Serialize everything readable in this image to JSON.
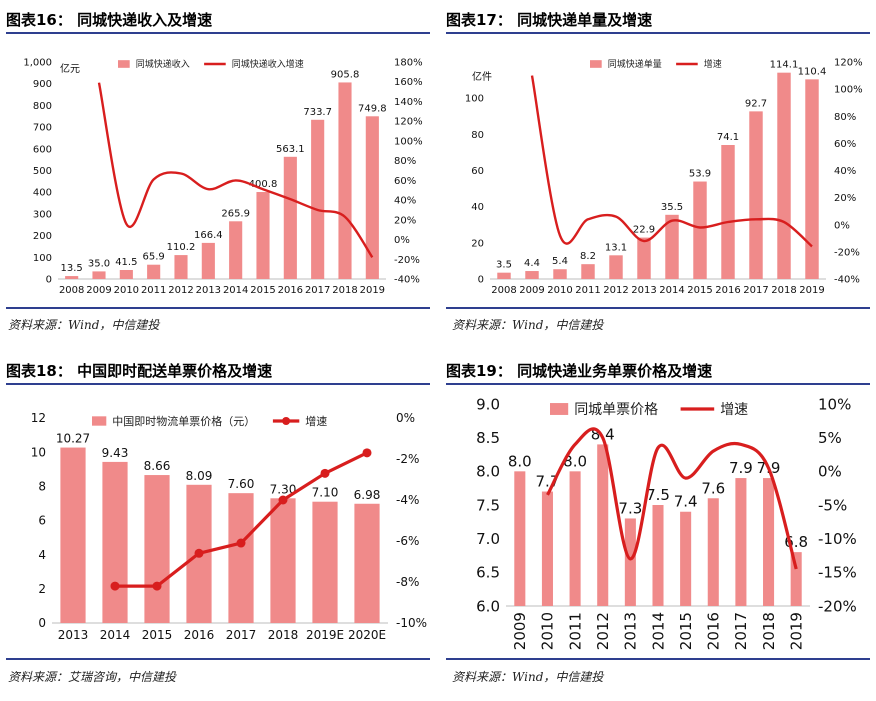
{
  "colors": {
    "bar": "#f08a8a",
    "line": "#d81e1e",
    "rule": "#2e3f8f"
  },
  "panels": [
    {
      "title": "图表16：  同城快递收入及增速",
      "source": "资料来源：Wind，中信建投"
    },
    {
      "title": "图表17：  同城快递单量及增速",
      "source": "资料来源：Wind，中信建投"
    },
    {
      "title": "图表18：  中国即时配送单票价格及增速",
      "source": "资料来源：艾瑞咨询，中信建投"
    },
    {
      "title": "图表19：  同城快递业务单票价格及增速",
      "source": "资料来源：Wind，中信建投"
    }
  ],
  "chart_data": [
    {
      "type": "bar",
      "categories": [
        "2008",
        "2009",
        "2010",
        "2011",
        "2012",
        "2013",
        "2014",
        "2015",
        "2016",
        "2017",
        "2018",
        "2019"
      ],
      "bar_labels": [
        "13.5",
        "35.0",
        "41.5",
        "65.9",
        "110.2",
        "166.4",
        "265.9",
        "400.8",
        "563.1",
        "733.7",
        "905.8",
        "749.8"
      ],
      "series": [
        {
          "name": "同城快递收入",
          "type": "bar",
          "axis": "left",
          "values": [
            13.5,
            35.0,
            41.5,
            65.9,
            110.2,
            166.4,
            265.9,
            400.8,
            563.1,
            733.7,
            905.8,
            749.8
          ]
        },
        {
          "name": "同城快递收入增速",
          "type": "line",
          "axis": "right",
          "values": [
            null,
            159,
            16,
            61,
            67,
            51,
            60,
            51,
            41,
            30,
            23,
            -18
          ]
        }
      ],
      "y_left": {
        "min": 0,
        "max": 1000,
        "step": 100,
        "ticks": [
          "0",
          "100",
          "200",
          "300",
          "400",
          "500",
          "600",
          "700",
          "800",
          "900",
          "1,000"
        ],
        "unit": "亿元"
      },
      "y_right": {
        "min": -40,
        "max": 180,
        "step": 20,
        "ticks": [
          "-40%",
          "-20%",
          "0%",
          "20%",
          "40%",
          "60%",
          "80%",
          "100%",
          "120%",
          "140%",
          "160%",
          "180%"
        ]
      },
      "legend_position": "top-center"
    },
    {
      "type": "bar",
      "categories": [
        "2008",
        "2009",
        "2010",
        "2011",
        "2012",
        "2013",
        "2014",
        "2015",
        "2016",
        "2017",
        "2018",
        "2019"
      ],
      "bar_labels": [
        "3.5",
        "4.4",
        "5.4",
        "8.2",
        "13.1",
        "22.9",
        "35.5",
        "53.9",
        "74.1",
        "92.7",
        "114.1",
        "110.4"
      ],
      "series": [
        {
          "name": "同城快递单量",
          "type": "bar",
          "axis": "left",
          "values": [
            3.5,
            4.4,
            5.4,
            8.2,
            13.1,
            22.9,
            35.5,
            53.9,
            74.1,
            92.7,
            114.1,
            110.4
          ]
        },
        {
          "name": "增速",
          "type": "line",
          "axis": "right",
          "values": [
            null,
            110,
            -8,
            4,
            6,
            -12,
            3,
            -2,
            2,
            4,
            2,
            -16
          ]
        }
      ],
      "y_left": {
        "min": 0,
        "max": 120,
        "step": 20,
        "ticks": [
          "0",
          "20",
          "40",
          "60",
          "80",
          "100"
        ],
        "unit": "亿件"
      },
      "y_right": {
        "min": -40,
        "max": 120,
        "step": 20,
        "ticks": [
          "-40%",
          "-20%",
          "0%",
          "20%",
          "40%",
          "60%",
          "80%",
          "100%",
          "120%"
        ]
      },
      "legend_position": "top-center"
    },
    {
      "type": "bar",
      "categories": [
        "2013",
        "2014",
        "2015",
        "2016",
        "2017",
        "2018",
        "2019E",
        "2020E"
      ],
      "bar_labels": [
        "10.27",
        "9.43",
        "8.66",
        "8.09",
        "7.60",
        "7.30",
        "7.10",
        "6.98"
      ],
      "series": [
        {
          "name": "中国即时物流单票价格（元）",
          "type": "bar",
          "axis": "left",
          "values": [
            10.27,
            9.43,
            8.66,
            8.09,
            7.6,
            7.3,
            7.1,
            6.98
          ]
        },
        {
          "name": "增速",
          "type": "line",
          "axis": "right",
          "markers": true,
          "values": [
            null,
            -8.2,
            -8.2,
            -6.6,
            -6.1,
            -4.0,
            -2.7,
            -1.7
          ]
        }
      ],
      "y_left": {
        "min": 0,
        "max": 12,
        "step": 2,
        "ticks": [
          "0",
          "2",
          "4",
          "6",
          "8",
          "10",
          "12"
        ]
      },
      "y_right": {
        "min": -10,
        "max": 0,
        "step": 2,
        "ticks": [
          "-10%",
          "-8%",
          "-6%",
          "-4%",
          "-2%",
          "0%"
        ]
      },
      "legend_position": "top-center"
    },
    {
      "type": "bar",
      "categories": [
        "2009",
        "2010",
        "2011",
        "2012",
        "2013",
        "2014",
        "2015",
        "2016",
        "2017",
        "2018",
        "2019"
      ],
      "bar_labels": [
        "8.0",
        "7.7",
        "8.0",
        "8.4",
        "7.3",
        "7.5",
        "7.4",
        "7.6",
        "7.9",
        "7.9",
        "6.8"
      ],
      "series": [
        {
          "name": "同城单票价格",
          "type": "bar",
          "axis": "left",
          "values": [
            8.0,
            7.7,
            8.0,
            8.4,
            7.3,
            7.5,
            7.4,
            7.6,
            7.9,
            7.9,
            6.8
          ]
        },
        {
          "name": "增速",
          "type": "line",
          "axis": "right",
          "values": [
            null,
            -3.5,
            4.0,
            5.0,
            -13.0,
            3.5,
            -1.0,
            3.0,
            4.0,
            0.5,
            -14.5
          ]
        }
      ],
      "y_left": {
        "min": 6.0,
        "max": 9.0,
        "step": 0.5,
        "ticks": [
          "6.0",
          "6.5",
          "7.0",
          "7.5",
          "8.0",
          "8.5",
          "9.0"
        ]
      },
      "y_right": {
        "min": -20,
        "max": 10,
        "step": 5,
        "ticks": [
          "-20%",
          "-15%",
          "-10%",
          "-5%",
          "0%",
          "5%",
          "10%"
        ]
      },
      "legend_position": "top-center"
    }
  ]
}
